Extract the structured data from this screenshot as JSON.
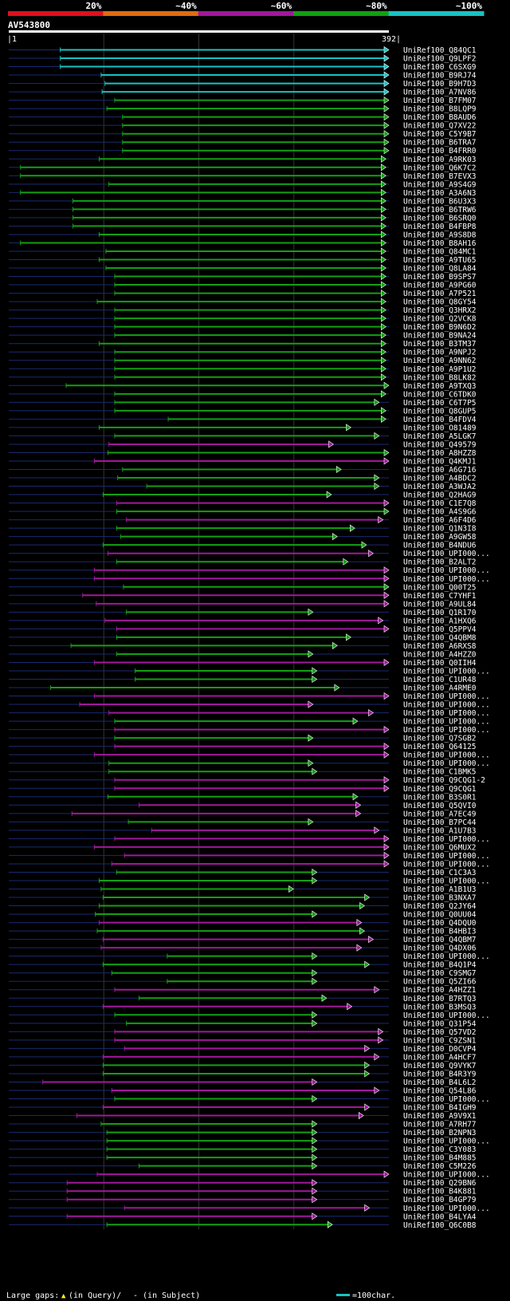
{
  "query": {
    "name": "AV543800",
    "start_label": "|1",
    "end_label": "392|",
    "length": 392
  },
  "identity_scale": [
    {
      "label": "20%",
      "color": "#e0101e"
    },
    {
      "label": "~40%",
      "color": "#e06c10"
    },
    {
      "label": "~60%",
      "color": "#a0189c"
    },
    {
      "label": "~80%",
      "color": "#12a012"
    },
    {
      "label": "~100%",
      "color": "#18c2c2"
    }
  ],
  "footer": {
    "gaps_label": "Large gaps:",
    "query_gap_label": "(in Query)/",
    "subject_gap_label": "- (in Subject)",
    "scale_label": "=100char."
  },
  "chart_data": {
    "type": "alignment",
    "x_range": [
      1,
      392
    ],
    "hits": [
      {
        "name": "UniRef100_Q84QC1",
        "s": 54,
        "e": 392,
        "c": "cyan"
      },
      {
        "name": "UniRef100_Q9LPF2",
        "s": 54,
        "e": 392,
        "c": "cyan"
      },
      {
        "name": "UniRef100_C6SXG9",
        "s": 54,
        "e": 392,
        "c": "cyan"
      },
      {
        "name": "UniRef100_B9RJ74",
        "s": 96,
        "e": 392,
        "c": "cyan"
      },
      {
        "name": "UniRef100_B9H7D3",
        "s": 100,
        "e": 392,
        "c": "cyan"
      },
      {
        "name": "UniRef100_A7NV86",
        "s": 97,
        "e": 392,
        "c": "cyan"
      },
      {
        "name": "UniRef100_B7FM07",
        "s": 110,
        "e": 392,
        "c": "green"
      },
      {
        "name": "UniRef100_B8LQP9",
        "s": 102,
        "e": 392,
        "c": "green"
      },
      {
        "name": "UniRef100_B8AUD6",
        "s": 118,
        "e": 392,
        "c": "green"
      },
      {
        "name": "UniRef100_Q7XV22",
        "s": 118,
        "e": 392,
        "c": "green"
      },
      {
        "name": "UniRef100_C5Y9B7",
        "s": 118,
        "e": 392,
        "c": "green"
      },
      {
        "name": "UniRef100_B6TRA7",
        "s": 118,
        "e": 392,
        "c": "green"
      },
      {
        "name": "UniRef100_B4FRR0",
        "s": 118,
        "e": 392,
        "c": "green"
      },
      {
        "name": "UniRef100_A9RK03",
        "s": 94,
        "e": 389,
        "c": "green"
      },
      {
        "name": "UniRef100_Q6K7C2",
        "s": 13,
        "e": 389,
        "c": "green"
      },
      {
        "name": "UniRef100_B7EVX3",
        "s": 13,
        "e": 389,
        "c": "green"
      },
      {
        "name": "UniRef100_A9S4G9",
        "s": 104,
        "e": 389,
        "c": "green"
      },
      {
        "name": "UniRef100_A3A6N3",
        "s": 13,
        "e": 389,
        "c": "green"
      },
      {
        "name": "UniRef100_B6U3X3",
        "s": 67,
        "e": 389,
        "c": "green"
      },
      {
        "name": "UniRef100_B6TRW6",
        "s": 67,
        "e": 389,
        "c": "green"
      },
      {
        "name": "UniRef100_B6SRQ0",
        "s": 67,
        "e": 389,
        "c": "green"
      },
      {
        "name": "UniRef100_B4FBP8",
        "s": 67,
        "e": 389,
        "c": "green"
      },
      {
        "name": "UniRef100_A9S8D8",
        "s": 94,
        "e": 389,
        "c": "green"
      },
      {
        "name": "UniRef100_B8AH16",
        "s": 13,
        "e": 389,
        "c": "green"
      },
      {
        "name": "UniRef100_Q84MC1",
        "s": 101,
        "e": 389,
        "c": "green"
      },
      {
        "name": "UniRef100_A9TU65",
        "s": 94,
        "e": 389,
        "c": "green"
      },
      {
        "name": "UniRef100_Q8LA84",
        "s": 101,
        "e": 389,
        "c": "green"
      },
      {
        "name": "UniRef100_B9SPS7",
        "s": 110,
        "e": 389,
        "c": "green"
      },
      {
        "name": "UniRef100_A9PG60",
        "s": 110,
        "e": 389,
        "c": "green"
      },
      {
        "name": "UniRef100_A7P521",
        "s": 110,
        "e": 389,
        "c": "green"
      },
      {
        "name": "UniRef100_Q8GY54",
        "s": 92,
        "e": 389,
        "c": "green"
      },
      {
        "name": "UniRef100_Q3HRX2",
        "s": 110,
        "e": 389,
        "c": "green"
      },
      {
        "name": "UniRef100_Q2VCK8",
        "s": 110,
        "e": 389,
        "c": "green"
      },
      {
        "name": "UniRef100_B9N6D2",
        "s": 110,
        "e": 389,
        "c": "green"
      },
      {
        "name": "UniRef100_B9NA24",
        "s": 110,
        "e": 389,
        "c": "green"
      },
      {
        "name": "UniRef100_B3TM37",
        "s": 94,
        "e": 389,
        "c": "green"
      },
      {
        "name": "UniRef100_A9NPJ2",
        "s": 110,
        "e": 389,
        "c": "green"
      },
      {
        "name": "UniRef100_A9NN62",
        "s": 110,
        "e": 389,
        "c": "green"
      },
      {
        "name": "UniRef100_A9P1U2",
        "s": 110,
        "e": 389,
        "c": "green"
      },
      {
        "name": "UniRef100_B8LK82",
        "s": 110,
        "e": 389,
        "c": "green"
      },
      {
        "name": "UniRef100_A9TXQ3",
        "s": 60,
        "e": 392,
        "c": "green"
      },
      {
        "name": "UniRef100_C6TDK0",
        "s": 110,
        "e": 389,
        "c": "green"
      },
      {
        "name": "UniRef100_C6T7P5",
        "s": 110,
        "e": 382,
        "c": "green"
      },
      {
        "name": "UniRef100_Q8GUP5",
        "s": 110,
        "e": 389,
        "c": "green"
      },
      {
        "name": "UniRef100_B4FDV4",
        "s": 165,
        "e": 389,
        "c": "green"
      },
      {
        "name": "UniRef100_O81489",
        "s": 94,
        "e": 353,
        "c": "green"
      },
      {
        "name": "UniRef100_A5LGK7",
        "s": 110,
        "e": 382,
        "c": "green"
      },
      {
        "name": "UniRef100_Q49579",
        "s": 104,
        "e": 335,
        "c": "magenta"
      },
      {
        "name": "UniRef100_A8HZZ8",
        "s": 103,
        "e": 392,
        "c": "green"
      },
      {
        "name": "UniRef100_Q4KMJ1",
        "s": 89,
        "e": 392,
        "c": "magenta"
      },
      {
        "name": "UniRef100_A6G716",
        "s": 118,
        "e": 343,
        "c": "green"
      },
      {
        "name": "UniRef100_A4BDC2",
        "s": 113,
        "e": 382,
        "c": "green"
      },
      {
        "name": "UniRef100_A3WJA2",
        "s": 143,
        "e": 382,
        "c": "green"
      },
      {
        "name": "UniRef100_Q2HAG9",
        "s": 98,
        "e": 333,
        "c": "green"
      },
      {
        "name": "UniRef100_C1E7Q8",
        "s": 112,
        "e": 392,
        "c": "magenta"
      },
      {
        "name": "UniRef100_A4S9G6",
        "s": 112,
        "e": 392,
        "c": "green"
      },
      {
        "name": "UniRef100_A6F4D6",
        "s": 122,
        "e": 386,
        "c": "magenta"
      },
      {
        "name": "UniRef100_Q1N3I8",
        "s": 112,
        "e": 357,
        "c": "green"
      },
      {
        "name": "UniRef100_A9GW58",
        "s": 116,
        "e": 339,
        "c": "green"
      },
      {
        "name": "UniRef100_B4NDU6",
        "s": 98,
        "e": 369,
        "c": "green"
      },
      {
        "name": "UniRef100_UPI000...",
        "s": 103,
        "e": 376,
        "c": "magenta"
      },
      {
        "name": "UniRef100_B2ALT2",
        "s": 112,
        "e": 350,
        "c": "green"
      },
      {
        "name": "UniRef100_UPI000...",
        "s": 89,
        "e": 392,
        "c": "magenta"
      },
      {
        "name": "UniRef100_UPI000...",
        "s": 89,
        "e": 392,
        "c": "magenta"
      },
      {
        "name": "UniRef100_Q00T25",
        "s": 119,
        "e": 392,
        "c": "green"
      },
      {
        "name": "UniRef100_C7YHF1",
        "s": 77,
        "e": 392,
        "c": "magenta"
      },
      {
        "name": "UniRef100_A9UL84",
        "s": 91,
        "e": 392,
        "c": "magenta"
      },
      {
        "name": "UniRef100_Q1R170",
        "s": 122,
        "e": 314,
        "c": "green"
      },
      {
        "name": "UniRef100_A1HXQ6",
        "s": 100,
        "e": 386,
        "c": "magenta"
      },
      {
        "name": "UniRef100_Q5PPV4",
        "s": 112,
        "e": 392,
        "c": "magenta"
      },
      {
        "name": "UniRef100_Q4QBM8",
        "s": 112,
        "e": 353,
        "c": "green"
      },
      {
        "name": "UniRef100_A6RXS8",
        "s": 65,
        "e": 339,
        "c": "green"
      },
      {
        "name": "UniRef100_A4HZZ0",
        "s": 112,
        "e": 314,
        "c": "green"
      },
      {
        "name": "UniRef100_Q0IIH4",
        "s": 89,
        "e": 392,
        "c": "magenta"
      },
      {
        "name": "UniRef100_UPI000...",
        "s": 131,
        "e": 318,
        "c": "green"
      },
      {
        "name": "UniRef100_C1UR48",
        "s": 131,
        "e": 318,
        "c": "green"
      },
      {
        "name": "UniRef100_A4RME0",
        "s": 44,
        "e": 341,
        "c": "green"
      },
      {
        "name": "UniRef100_UPI000...",
        "s": 89,
        "e": 392,
        "c": "magenta"
      },
      {
        "name": "UniRef100_UPI000...",
        "s": 74,
        "e": 314,
        "c": "magenta"
      },
      {
        "name": "UniRef100_UPI000...",
        "s": 104,
        "e": 376,
        "c": "magenta"
      },
      {
        "name": "UniRef100_UPI000...",
        "s": 110,
        "e": 360,
        "c": "green"
      },
      {
        "name": "UniRef100_UPI000...",
        "s": 110,
        "e": 392,
        "c": "magenta"
      },
      {
        "name": "UniRef100_Q7SGB2",
        "s": 110,
        "e": 314,
        "c": "green"
      },
      {
        "name": "UniRef100_Q64125",
        "s": 110,
        "e": 392,
        "c": "magenta"
      },
      {
        "name": "UniRef100_UPI000...",
        "s": 89,
        "e": 392,
        "c": "magenta"
      },
      {
        "name": "UniRef100_UPI000...",
        "s": 104,
        "e": 314,
        "c": "green"
      },
      {
        "name": "UniRef100_C1BMK5",
        "s": 104,
        "e": 318,
        "c": "green"
      },
      {
        "name": "UniRef100_Q9CQG1-2",
        "s": 110,
        "e": 392,
        "c": "magenta"
      },
      {
        "name": "UniRef100_Q9CQG1",
        "s": 110,
        "e": 392,
        "c": "magenta"
      },
      {
        "name": "UniRef100_B3S0R1",
        "s": 103,
        "e": 360,
        "c": "green"
      },
      {
        "name": "UniRef100_Q5QVI0",
        "s": 135,
        "e": 363,
        "c": "magenta"
      },
      {
        "name": "UniRef100_A7EC49",
        "s": 66,
        "e": 363,
        "c": "magenta"
      },
      {
        "name": "UniRef100_B7PC44",
        "s": 124,
        "e": 314,
        "c": "green"
      },
      {
        "name": "UniRef100_A1U7B3",
        "s": 148,
        "e": 382,
        "c": "magenta"
      },
      {
        "name": "UniRef100_UPI000...",
        "s": 110,
        "e": 392,
        "c": "magenta"
      },
      {
        "name": "UniRef100_Q6MUX2",
        "s": 89,
        "e": 392,
        "c": "magenta"
      },
      {
        "name": "UniRef100_UPI000...",
        "s": 120,
        "e": 392,
        "c": "magenta"
      },
      {
        "name": "UniRef100_UPI000...",
        "s": 107,
        "e": 392,
        "c": "magenta"
      },
      {
        "name": "UniRef100_C1C3A3",
        "s": 112,
        "e": 318,
        "c": "green"
      },
      {
        "name": "UniRef100_UPI000...",
        "s": 94,
        "e": 318,
        "c": "green"
      },
      {
        "name": "UniRef100_A1B1U3",
        "s": 96,
        "e": 294,
        "c": "green"
      },
      {
        "name": "UniRef100_B3NXA7",
        "s": 98,
        "e": 372,
        "c": "green"
      },
      {
        "name": "UniRef100_Q2JY64",
        "s": 94,
        "e": 367,
        "c": "green"
      },
      {
        "name": "UniRef100_Q0UU04",
        "s": 90,
        "e": 318,
        "c": "green"
      },
      {
        "name": "UniRef100_Q4DQU0",
        "s": 94,
        "e": 364,
        "c": "magenta"
      },
      {
        "name": "UniRef100_B4HBI3",
        "s": 92,
        "e": 367,
        "c": "green"
      },
      {
        "name": "UniRef100_Q4QBM7",
        "s": 98,
        "e": 376,
        "c": "magenta"
      },
      {
        "name": "UniRef100_Q4DX06",
        "s": 96,
        "e": 364,
        "c": "magenta"
      },
      {
        "name": "UniRef100_UPI000...",
        "s": 164,
        "e": 318,
        "c": "green"
      },
      {
        "name": "UniRef100_B4Q1P4",
        "s": 98,
        "e": 372,
        "c": "green"
      },
      {
        "name": "UniRef100_C9SMG7",
        "s": 107,
        "e": 318,
        "c": "green"
      },
      {
        "name": "UniRef100_Q5ZI66",
        "s": 164,
        "e": 318,
        "c": "green"
      },
      {
        "name": "UniRef100_A4HZZ1",
        "s": 110,
        "e": 382,
        "c": "magenta"
      },
      {
        "name": "UniRef100_B7RTQ3",
        "s": 135,
        "e": 328,
        "c": "green"
      },
      {
        "name": "UniRef100_B3MSQ3",
        "s": 98,
        "e": 354,
        "c": "magenta"
      },
      {
        "name": "UniRef100_UPI000...",
        "s": 110,
        "e": 318,
        "c": "green"
      },
      {
        "name": "UniRef100_Q31P54",
        "s": 122,
        "e": 318,
        "c": "green"
      },
      {
        "name": "UniRef100_Q57VD2",
        "s": 110,
        "e": 386,
        "c": "magenta"
      },
      {
        "name": "UniRef100_C9ZSN1",
        "s": 110,
        "e": 386,
        "c": "magenta"
      },
      {
        "name": "UniRef100_D0CVP4",
        "s": 120,
        "e": 372,
        "c": "magenta"
      },
      {
        "name": "UniRef100_A4HCF7",
        "s": 98,
        "e": 382,
        "c": "magenta"
      },
      {
        "name": "UniRef100_Q9VYK7",
        "s": 98,
        "e": 372,
        "c": "green"
      },
      {
        "name": "UniRef100_B4R3Y9",
        "s": 98,
        "e": 372,
        "c": "green"
      },
      {
        "name": "UniRef100_B4L6L2",
        "s": 36,
        "e": 318,
        "c": "magenta"
      },
      {
        "name": "UniRef100_Q54L86",
        "s": 107,
        "e": 382,
        "c": "magenta"
      },
      {
        "name": "UniRef100_UPI000...",
        "s": 110,
        "e": 318,
        "c": "green"
      },
      {
        "name": "UniRef100_B4IGH9",
        "s": 98,
        "e": 372,
        "c": "magenta"
      },
      {
        "name": "UniRef100_A9V9X1",
        "s": 71,
        "e": 366,
        "c": "magenta"
      },
      {
        "name": "UniRef100_A7RH77",
        "s": 96,
        "e": 318,
        "c": "green"
      },
      {
        "name": "UniRef100_B2NPN3",
        "s": 102,
        "e": 318,
        "c": "green"
      },
      {
        "name": "UniRef100_UPI000...",
        "s": 102,
        "e": 318,
        "c": "green"
      },
      {
        "name": "UniRef100_C3Y083",
        "s": 102,
        "e": 318,
        "c": "green"
      },
      {
        "name": "UniRef100_B4M885",
        "s": 102,
        "e": 318,
        "c": "green"
      },
      {
        "name": "UniRef100_C5M226",
        "s": 135,
        "e": 318,
        "c": "green"
      },
      {
        "name": "UniRef100_UPI000...",
        "s": 92,
        "e": 392,
        "c": "magenta"
      },
      {
        "name": "UniRef100_Q29BN6",
        "s": 61,
        "e": 318,
        "c": "magenta"
      },
      {
        "name": "UniRef100_B4K881",
        "s": 61,
        "e": 318,
        "c": "magenta"
      },
      {
        "name": "UniRef100_B4GP79",
        "s": 61,
        "e": 318,
        "c": "magenta"
      },
      {
        "name": "UniRef100_UPI000...",
        "s": 120,
        "e": 372,
        "c": "magenta"
      },
      {
        "name": "UniRef100_B4LYA4",
        "s": 61,
        "e": 318,
        "c": "magenta"
      },
      {
        "name": "UniRef100_Q6C0B8",
        "s": 102,
        "e": 334,
        "c": "green"
      }
    ]
  }
}
